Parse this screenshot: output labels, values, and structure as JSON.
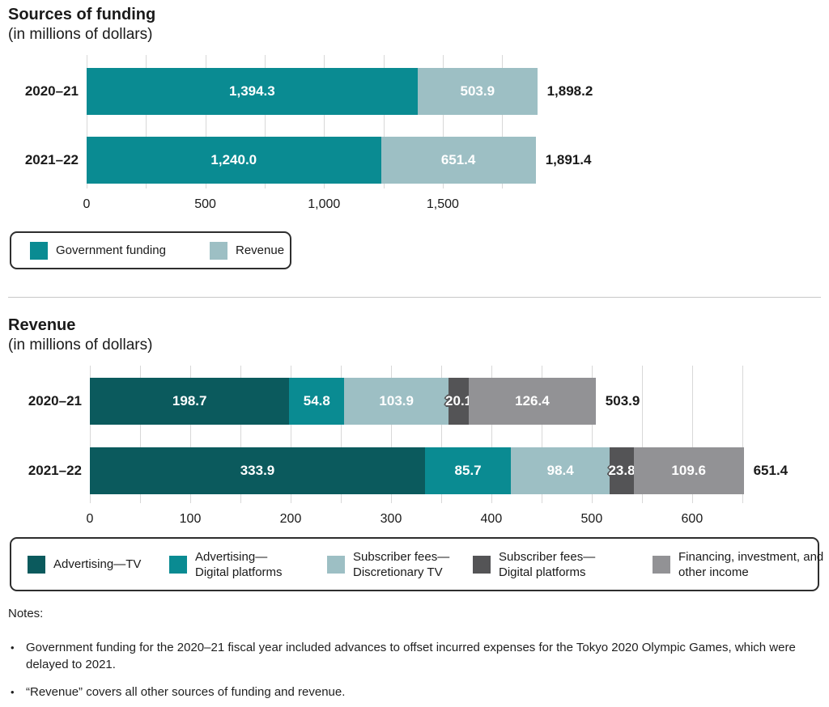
{
  "styles": {
    "grid_color": "#d8d8d8",
    "text_color": "#1a1a1a",
    "bar_label_color": "#ffffff",
    "legend_border_color": "#2e2e2e",
    "outline_label_stroke": "#545456",
    "divider_color": "#c8c8c8"
  },
  "chart_data": [
    {
      "type": "bar",
      "stacked": true,
      "orientation": "horizontal",
      "title": "Sources of funding",
      "subtitle": "(in millions of dollars)",
      "categories": [
        "2020–21",
        "2021–22"
      ],
      "series": [
        {
          "name": "Government funding",
          "color": "#0a8b92",
          "values": [
            1394.3,
            1240.0
          ]
        },
        {
          "name": "Revenue",
          "color": "#9dbfc4",
          "values": [
            503.9,
            651.4
          ]
        }
      ],
      "value_labels": [
        [
          "1,394.3",
          "503.9"
        ],
        [
          "1,240.0",
          "651.4"
        ]
      ],
      "totals": [
        1898.2,
        1891.4
      ],
      "total_labels": [
        "1,898.2",
        "1,891.4"
      ],
      "xlim": [
        0,
        1750
      ],
      "grid_step": 250,
      "grid": true,
      "x_ticks": [
        {
          "value": 0,
          "label": "0"
        },
        {
          "value": 500,
          "label": "500"
        },
        {
          "value": 1000,
          "label": "1,000"
        },
        {
          "value": 1500,
          "label": "1,500"
        }
      ],
      "legend_position": "bottom-left-box",
      "legend_lines": [
        [
          "Government funding"
        ],
        [
          "Revenue"
        ]
      ]
    },
    {
      "type": "bar",
      "stacked": true,
      "orientation": "horizontal",
      "title": "Revenue",
      "subtitle": "(in millions of dollars)",
      "categories": [
        "2020–21",
        "2021–22"
      ],
      "series": [
        {
          "name": "Advertising—TV",
          "color": "#0b5a5d",
          "values": [
            198.7,
            333.9
          ]
        },
        {
          "name": "Advertising—Digital platforms",
          "color": "#0a8b92",
          "values": [
            54.8,
            85.7
          ]
        },
        {
          "name": "Subscriber fees—Discretionary TV",
          "color": "#9dbfc4",
          "values": [
            103.9,
            98.4
          ]
        },
        {
          "name": "Subscriber fees—Digital platforms",
          "color": "#545456",
          "values": [
            20.1,
            23.8
          ]
        },
        {
          "name": "Financing, investment, and other income",
          "color": "#929295",
          "values": [
            126.4,
            109.6
          ]
        }
      ],
      "value_labels": [
        [
          "198.7",
          "54.8",
          "103.9",
          "20.1",
          "126.4"
        ],
        [
          "333.9",
          "85.7",
          "98.4",
          "23.8",
          "109.6"
        ]
      ],
      "totals": [
        503.9,
        651.4
      ],
      "total_labels": [
        "503.9",
        "651.4"
      ],
      "xlim": [
        0,
        650
      ],
      "grid_step": 50,
      "grid": true,
      "x_ticks": [
        {
          "value": 0,
          "label": "0"
        },
        {
          "value": 100,
          "label": "100"
        },
        {
          "value": 200,
          "label": "200"
        },
        {
          "value": 300,
          "label": "300"
        },
        {
          "value": 400,
          "label": "400"
        },
        {
          "value": 500,
          "label": "500"
        },
        {
          "value": 600,
          "label": "600"
        }
      ],
      "legend_position": "bottom-full-width-box",
      "legend_lines": [
        [
          "Advertising—TV"
        ],
        [
          "Advertising—",
          "Digital platforms"
        ],
        [
          "Subscriber fees—",
          "Discretionary TV"
        ],
        [
          "Subscriber fees—",
          "Digital platforms"
        ],
        [
          "Financing, investment, and",
          "other income"
        ]
      ]
    }
  ],
  "notes": {
    "heading": "Notes:",
    "bullet": "•",
    "items": [
      "Government funding for the 2020–21 fiscal year included advances to offset incurred expenses for the Tokyo 2020 Olympic Games, which were delayed to 2021.",
      "“Revenue” covers all other sources of funding and revenue."
    ]
  }
}
